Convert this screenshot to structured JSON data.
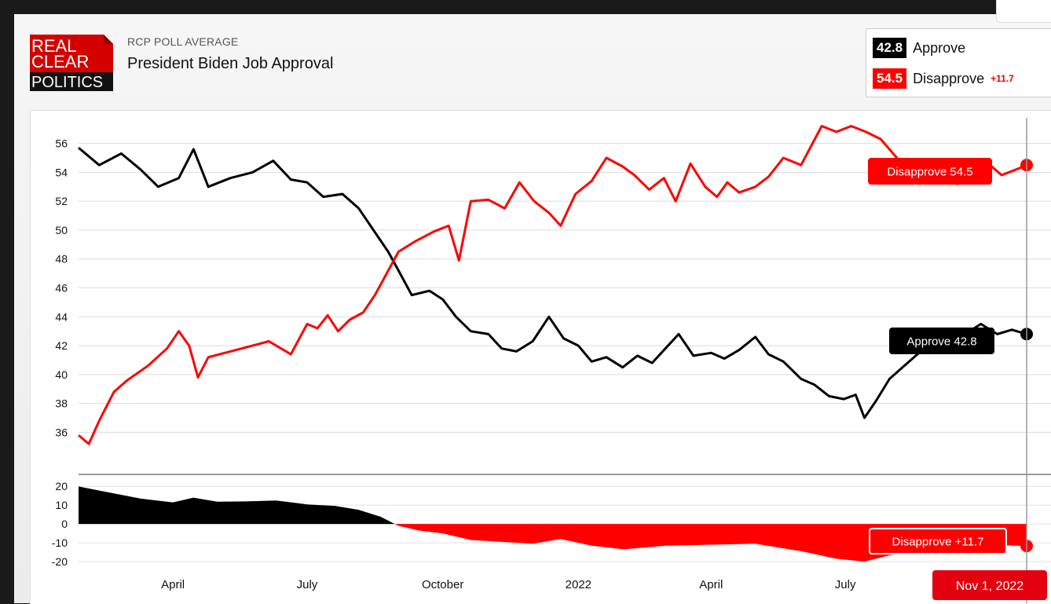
{
  "header": {
    "logo_lines": [
      "REAL",
      "CLEAR",
      "POLITICS"
    ],
    "kicker": "RCP POLL AVERAGE",
    "title": "President Biden Job Approval"
  },
  "legend": {
    "approve": {
      "value": "42.8",
      "label": "Approve"
    },
    "disapprove": {
      "value": "54.5",
      "label": "Disapprove",
      "spread": "+11.7"
    }
  },
  "tooltips": {
    "disapprove": "Disapprove 54.5",
    "approve": "Approve 42.8",
    "spread": "Disapprove +11.7",
    "date": "Nov 1, 2022"
  },
  "colors": {
    "approve": "#000000",
    "disapprove": "#ff0000",
    "badge_red": "#e3000f"
  },
  "chart_data": [
    {
      "type": "line",
      "title": "President Biden Job Approval",
      "x_tick_labels": [
        "April",
        "July",
        "October",
        "2022",
        "April",
        "July"
      ],
      "x_ticks": [
        "2021-04-01",
        "2021-07-01",
        "2021-10-01",
        "2022-01-01",
        "2022-04-01",
        "2022-07-01"
      ],
      "xlim": [
        "2021-01-27",
        "2022-11-01"
      ],
      "ylim": [
        34.5,
        57.5
      ],
      "y_ticks": [
        36,
        38,
        40,
        42,
        44,
        46,
        48,
        50,
        52,
        54,
        56
      ],
      "grid": true,
      "series": [
        {
          "name": "Approve",
          "color": "#000000",
          "points": [
            [
              "2021-01-27",
              55.7
            ],
            [
              "2021-02-10",
              54.5
            ],
            [
              "2021-02-25",
              55.3
            ],
            [
              "2021-03-10",
              54.2
            ],
            [
              "2021-03-22",
              53.0
            ],
            [
              "2021-04-05",
              53.6
            ],
            [
              "2021-04-15",
              55.6
            ],
            [
              "2021-04-25",
              53.0
            ],
            [
              "2021-05-10",
              53.6
            ],
            [
              "2021-05-25",
              54.0
            ],
            [
              "2021-06-08",
              54.8
            ],
            [
              "2021-06-20",
              53.5
            ],
            [
              "2021-07-01",
              53.3
            ],
            [
              "2021-07-12",
              52.3
            ],
            [
              "2021-07-25",
              52.5
            ],
            [
              "2021-08-05",
              51.5
            ],
            [
              "2021-08-15",
              50.0
            ],
            [
              "2021-08-25",
              48.5
            ],
            [
              "2021-09-01",
              47.2
            ],
            [
              "2021-09-10",
              45.5
            ],
            [
              "2021-09-22",
              45.8
            ],
            [
              "2021-10-01",
              45.2
            ],
            [
              "2021-10-10",
              44.0
            ],
            [
              "2021-10-20",
              43.0
            ],
            [
              "2021-11-01",
              42.8
            ],
            [
              "2021-11-10",
              41.8
            ],
            [
              "2021-11-20",
              41.6
            ],
            [
              "2021-12-01",
              42.3
            ],
            [
              "2021-12-12",
              44.0
            ],
            [
              "2021-12-22",
              42.5
            ],
            [
              "2022-01-01",
              42.0
            ],
            [
              "2022-01-10",
              40.9
            ],
            [
              "2022-01-20",
              41.2
            ],
            [
              "2022-01-31",
              40.5
            ],
            [
              "2022-02-10",
              41.3
            ],
            [
              "2022-02-20",
              40.8
            ],
            [
              "2022-03-01",
              41.8
            ],
            [
              "2022-03-10",
              42.8
            ],
            [
              "2022-03-20",
              41.3
            ],
            [
              "2022-04-01",
              41.5
            ],
            [
              "2022-04-10",
              41.1
            ],
            [
              "2022-04-20",
              41.7
            ],
            [
              "2022-05-01",
              42.6
            ],
            [
              "2022-05-10",
              41.4
            ],
            [
              "2022-05-20",
              40.9
            ],
            [
              "2022-06-01",
              39.7
            ],
            [
              "2022-06-10",
              39.3
            ],
            [
              "2022-06-20",
              38.5
            ],
            [
              "2022-06-30",
              38.3
            ],
            [
              "2022-07-08",
              38.6
            ],
            [
              "2022-07-14",
              37.0
            ],
            [
              "2022-07-22",
              38.2
            ],
            [
              "2022-07-31",
              39.7
            ],
            [
              "2022-08-10",
              40.6
            ],
            [
              "2022-08-20",
              41.5
            ],
            [
              "2022-09-01",
              42.3
            ],
            [
              "2022-09-10",
              43.0
            ],
            [
              "2022-09-20",
              42.8
            ],
            [
              "2022-10-01",
              43.5
            ],
            [
              "2022-10-12",
              42.8
            ],
            [
              "2022-10-22",
              43.1
            ],
            [
              "2022-11-01",
              42.8
            ]
          ]
        },
        {
          "name": "Disapprove",
          "color": "#ff0000",
          "points": [
            [
              "2021-01-27",
              35.8
            ],
            [
              "2021-02-03",
              35.2
            ],
            [
              "2021-02-10",
              36.8
            ],
            [
              "2021-02-20",
              38.8
            ],
            [
              "2021-03-01",
              39.6
            ],
            [
              "2021-03-15",
              40.6
            ],
            [
              "2021-03-28",
              41.8
            ],
            [
              "2021-04-05",
              43.0
            ],
            [
              "2021-04-12",
              42.0
            ],
            [
              "2021-04-18",
              39.8
            ],
            [
              "2021-04-25",
              41.2
            ],
            [
              "2021-05-10",
              41.6
            ],
            [
              "2021-05-25",
              42.0
            ],
            [
              "2021-06-05",
              42.3
            ],
            [
              "2021-06-20",
              41.4
            ],
            [
              "2021-07-01",
              43.5
            ],
            [
              "2021-07-08",
              43.2
            ],
            [
              "2021-07-15",
              44.1
            ],
            [
              "2021-07-22",
              43.0
            ],
            [
              "2021-07-30",
              43.8
            ],
            [
              "2021-08-08",
              44.3
            ],
            [
              "2021-08-16",
              45.5
            ],
            [
              "2021-08-24",
              47.0
            ],
            [
              "2021-09-01",
              48.5
            ],
            [
              "2021-09-12",
              49.2
            ],
            [
              "2021-09-25",
              49.9
            ],
            [
              "2021-10-05",
              50.3
            ],
            [
              "2021-10-12",
              47.9
            ],
            [
              "2021-10-20",
              52.0
            ],
            [
              "2021-11-01",
              52.1
            ],
            [
              "2021-11-12",
              51.5
            ],
            [
              "2021-11-22",
              53.3
            ],
            [
              "2021-12-02",
              52.0
            ],
            [
              "2021-12-12",
              51.2
            ],
            [
              "2021-12-20",
              50.3
            ],
            [
              "2021-12-30",
              52.5
            ],
            [
              "2022-01-10",
              53.4
            ],
            [
              "2022-01-20",
              55.0
            ],
            [
              "2022-01-31",
              54.4
            ],
            [
              "2022-02-08",
              53.8
            ],
            [
              "2022-02-18",
              52.8
            ],
            [
              "2022-02-28",
              53.6
            ],
            [
              "2022-03-08",
              52.0
            ],
            [
              "2022-03-18",
              54.6
            ],
            [
              "2022-03-28",
              53.0
            ],
            [
              "2022-04-05",
              52.3
            ],
            [
              "2022-04-12",
              53.3
            ],
            [
              "2022-04-20",
              52.6
            ],
            [
              "2022-05-01",
              53.0
            ],
            [
              "2022-05-10",
              53.7
            ],
            [
              "2022-05-20",
              55.0
            ],
            [
              "2022-06-01",
              54.5
            ],
            [
              "2022-06-15",
              57.2
            ],
            [
              "2022-06-25",
              56.8
            ],
            [
              "2022-07-05",
              57.2
            ],
            [
              "2022-07-15",
              56.8
            ],
            [
              "2022-07-25",
              56.3
            ],
            [
              "2022-08-05",
              55.0
            ],
            [
              "2022-08-15",
              53.8
            ],
            [
              "2022-08-25",
              53.6
            ],
            [
              "2022-09-05",
              53.4
            ],
            [
              "2022-09-15",
              53.2
            ],
            [
              "2022-09-25",
              53.4
            ],
            [
              "2022-10-05",
              54.7
            ],
            [
              "2022-10-15",
              53.8
            ],
            [
              "2022-10-25",
              54.2
            ],
            [
              "2022-11-01",
              54.5
            ]
          ]
        }
      ]
    },
    {
      "type": "area",
      "title": "",
      "ylim": [
        -25,
        23
      ],
      "y_ticks": [
        20,
        10,
        0,
        -10,
        -20
      ],
      "series": [
        {
          "name": "Spread",
          "positive_color": "#000000",
          "negative_color": "#ff0000",
          "points": [
            [
              "2021-01-27",
              19.9
            ],
            [
              "2021-02-15",
              17.0
            ],
            [
              "2021-03-10",
              13.5
            ],
            [
              "2021-04-01",
              11.5
            ],
            [
              "2021-04-15",
              14.0
            ],
            [
              "2021-05-01",
              11.8
            ],
            [
              "2021-05-20",
              12.0
            ],
            [
              "2021-06-10",
              12.5
            ],
            [
              "2021-07-01",
              10.4
            ],
            [
              "2021-07-20",
              9.6
            ],
            [
              "2021-08-05",
              7.5
            ],
            [
              "2021-08-20",
              3.8
            ],
            [
              "2021-09-01",
              -1.0
            ],
            [
              "2021-09-15",
              -3.5
            ],
            [
              "2021-10-01",
              -5.0
            ],
            [
              "2021-10-20",
              -8.5
            ],
            [
              "2021-11-10",
              -9.5
            ],
            [
              "2021-12-01",
              -10.5
            ],
            [
              "2021-12-20",
              -8.0
            ],
            [
              "2022-01-10",
              -11.5
            ],
            [
              "2022-02-01",
              -13.5
            ],
            [
              "2022-03-01",
              -11.5
            ],
            [
              "2022-04-01",
              -11.0
            ],
            [
              "2022-05-01",
              -10.5
            ],
            [
              "2022-06-01",
              -14.5
            ],
            [
              "2022-06-25",
              -18.5
            ],
            [
              "2022-07-14",
              -20.0
            ],
            [
              "2022-08-01",
              -16.5
            ],
            [
              "2022-09-01",
              -11.5
            ],
            [
              "2022-10-01",
              -11.0
            ],
            [
              "2022-11-01",
              -11.7
            ]
          ]
        }
      ]
    }
  ]
}
